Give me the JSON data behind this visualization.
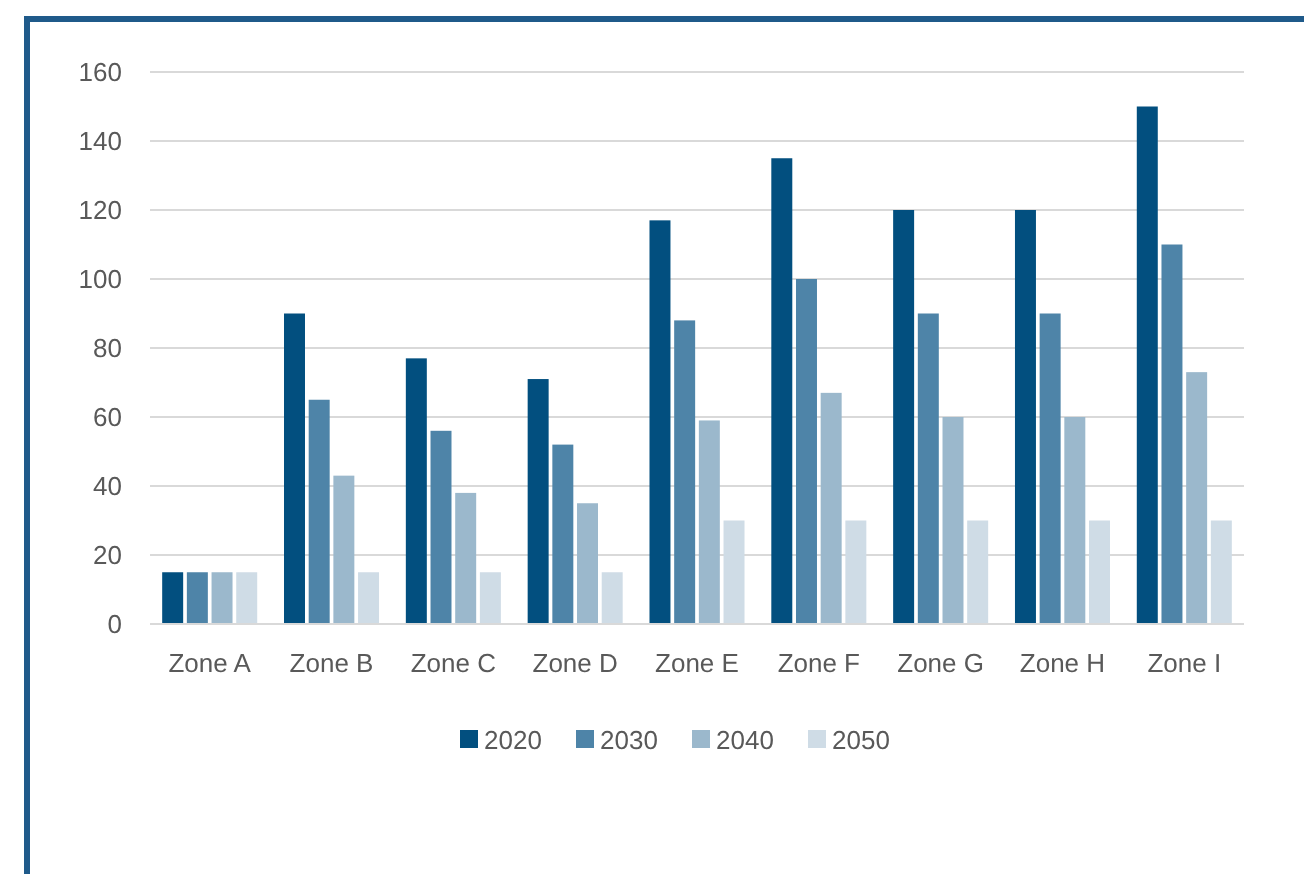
{
  "chart_data": {
    "type": "bar",
    "categories": [
      "Zone A",
      "Zone B",
      "Zone C",
      "Zone D",
      "Zone E",
      "Zone F",
      "Zone G",
      "Zone H",
      "Zone I"
    ],
    "series": [
      {
        "name": "2020",
        "color": "#024f7f",
        "values": [
          15,
          90,
          77,
          71,
          117,
          135,
          120,
          120,
          150
        ]
      },
      {
        "name": "2030",
        "color": "#4e84a8",
        "values": [
          15,
          65,
          56,
          52,
          88,
          100,
          90,
          90,
          110
        ]
      },
      {
        "name": "2040",
        "color": "#9bb8cc",
        "values": [
          15,
          43,
          38,
          35,
          59,
          67,
          60,
          60,
          73
        ]
      },
      {
        "name": "2050",
        "color": "#cfdce6",
        "values": [
          15,
          15,
          15,
          15,
          30,
          30,
          30,
          30,
          30
        ]
      }
    ],
    "ylim": [
      0,
      160
    ],
    "yticks": [
      0,
      20,
      40,
      60,
      80,
      100,
      120,
      140,
      160
    ],
    "grid": "y",
    "legend": "bottom"
  }
}
